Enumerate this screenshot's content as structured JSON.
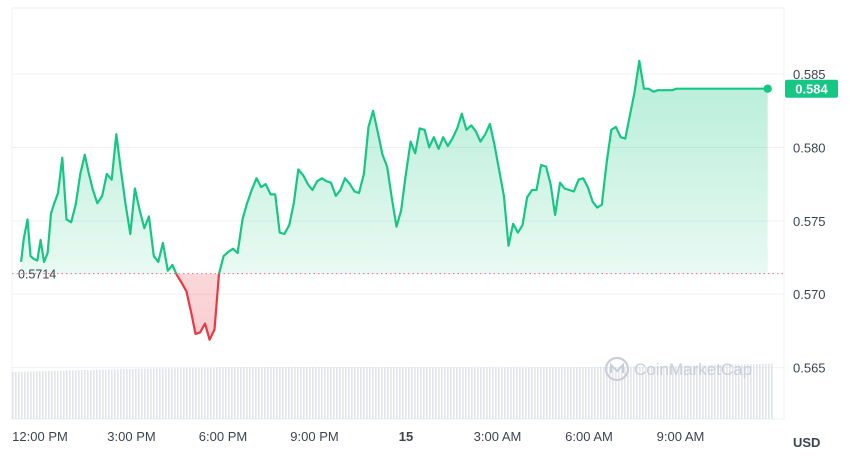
{
  "chart_data": {
    "type": "line",
    "currency": "USD",
    "watermark": "CoinMarketCap",
    "reference_price": 0.5714,
    "reference_label": "0.5714",
    "last_price": 0.584,
    "last_label": "0.584",
    "ylim": [
      0.5615,
      0.5895
    ],
    "y_ticks": [
      {
        "value": 0.585,
        "label": "0.585"
      },
      {
        "value": 0.58,
        "label": "0.580"
      },
      {
        "value": 0.575,
        "label": "0.575"
      },
      {
        "value": 0.57,
        "label": "0.570"
      },
      {
        "value": 0.565,
        "label": "0.565"
      }
    ],
    "x_ticks": [
      {
        "h": 0,
        "label": "12:00 PM"
      },
      {
        "h": 3,
        "label": "3:00 PM"
      },
      {
        "h": 6,
        "label": "6:00 PM"
      },
      {
        "h": 9,
        "label": "9:00 PM"
      },
      {
        "h": 12,
        "label": "15",
        "bold": true
      },
      {
        "h": 15,
        "label": "3:00 AM"
      },
      {
        "h": 18,
        "label": "6:00 AM"
      },
      {
        "h": 21,
        "label": "9:00 AM"
      }
    ],
    "series": [
      {
        "x_hours": [
          -0.62,
          -0.53,
          -0.41,
          -0.31,
          -0.2,
          -0.09,
          0.02,
          0.13,
          0.25,
          0.36,
          0.47,
          0.59,
          0.73,
          0.87,
          1.02,
          1.17,
          1.32,
          1.47,
          1.58,
          1.72,
          1.88,
          2.04,
          2.19,
          2.35,
          2.5,
          2.65,
          2.8,
          2.96,
          3.11,
          3.26,
          3.42,
          3.57,
          3.73,
          3.88,
          4.03,
          4.19,
          4.34,
          4.49,
          4.64,
          4.8,
          4.95,
          5.1,
          5.25,
          5.41,
          5.56,
          5.72,
          5.87,
          6.02,
          6.18,
          6.33,
          6.48,
          6.64,
          6.79,
          6.94,
          7.1,
          7.25,
          7.4,
          7.56,
          7.71,
          7.86,
          8.01,
          8.17,
          8.32,
          8.47,
          8.63,
          8.78,
          8.93,
          9.09,
          9.24,
          9.39,
          9.54,
          9.7,
          9.85,
          10.0,
          10.16,
          10.31,
          10.46,
          10.62,
          10.77,
          10.92,
          11.08,
          11.23,
          11.38,
          11.53,
          11.69,
          11.84,
          11.99,
          12.15,
          12.3,
          12.45,
          12.61,
          12.76,
          12.91,
          13.07,
          13.22,
          13.37,
          13.52,
          13.68,
          13.83,
          13.98,
          14.14,
          14.29,
          14.44,
          14.6,
          14.75,
          14.9,
          15.06,
          15.21,
          15.36,
          15.51,
          15.67,
          15.82,
          15.97,
          16.13,
          16.28,
          16.43,
          16.59,
          16.74,
          16.89,
          17.05,
          17.2,
          17.35,
          17.5,
          17.66,
          17.81,
          17.96,
          18.12,
          18.27,
          18.42,
          18.58,
          18.73,
          18.88,
          19.04,
          19.19,
          19.34,
          19.49,
          19.65,
          19.8,
          19.95,
          20.11,
          20.26,
          20.41,
          20.57,
          20.72,
          20.87,
          21.03,
          21.18,
          21.33,
          21.48,
          21.64,
          21.79,
          21.94,
          22.1,
          22.25,
          22.4,
          22.56,
          22.71,
          22.86,
          23.02,
          23.17,
          23.32,
          23.47,
          23.63,
          23.78,
          23.86
        ],
        "y": [
          0.5722,
          0.5738,
          0.5751,
          0.5726,
          0.5724,
          0.5723,
          0.5737,
          0.5722,
          0.5728,
          0.5755,
          0.5762,
          0.5769,
          0.5793,
          0.5751,
          0.5749,
          0.5761,
          0.5782,
          0.5795,
          0.5784,
          0.5772,
          0.5762,
          0.5767,
          0.5782,
          0.5778,
          0.5809,
          0.5785,
          0.5762,
          0.5741,
          0.5772,
          0.5758,
          0.5745,
          0.5753,
          0.5726,
          0.5722,
          0.5735,
          0.5716,
          0.572,
          0.5713,
          0.5708,
          0.5702,
          0.5688,
          0.5673,
          0.5674,
          0.568,
          0.5669,
          0.5676,
          0.5714,
          0.5726,
          0.5729,
          0.5731,
          0.5728,
          0.5751,
          0.5762,
          0.5771,
          0.5779,
          0.5773,
          0.5775,
          0.5768,
          0.5768,
          0.5742,
          0.5741,
          0.5747,
          0.5762,
          0.5785,
          0.5781,
          0.5775,
          0.5771,
          0.5777,
          0.5779,
          0.5777,
          0.5776,
          0.5767,
          0.5771,
          0.5779,
          0.5775,
          0.577,
          0.5769,
          0.5782,
          0.5814,
          0.5825,
          0.581,
          0.5795,
          0.5787,
          0.5766,
          0.5746,
          0.5757,
          0.5781,
          0.5804,
          0.5796,
          0.5813,
          0.5812,
          0.58,
          0.5807,
          0.5799,
          0.5807,
          0.5801,
          0.5806,
          0.5813,
          0.5823,
          0.5812,
          0.5815,
          0.5811,
          0.5804,
          0.5809,
          0.5816,
          0.5802,
          0.5784,
          0.5767,
          0.5733,
          0.5748,
          0.5742,
          0.5747,
          0.5766,
          0.5771,
          0.5771,
          0.5788,
          0.5787,
          0.5775,
          0.5754,
          0.5776,
          0.5772,
          0.5771,
          0.577,
          0.5778,
          0.5779,
          0.5773,
          0.5763,
          0.5759,
          0.5761,
          0.579,
          0.5812,
          0.5814,
          0.5807,
          0.5806,
          0.5822,
          0.5837,
          0.5859,
          0.584,
          0.584,
          0.5838,
          0.5839,
          0.5839,
          0.5839,
          0.5839,
          0.584,
          0.584,
          0.584,
          0.584,
          0.584,
          0.584,
          0.584,
          0.584,
          0.584,
          0.584,
          0.584,
          0.584,
          0.584,
          0.584,
          0.584,
          0.584,
          0.584,
          0.584,
          0.584,
          0.584,
          0.584
        ]
      }
    ],
    "colors": {
      "up": "#16c784",
      "down": "#ea3943",
      "grid": "#eef0f3",
      "axis_text": "#3d4451",
      "volume": "#d7dbe1",
      "reference_line": "#ea3943"
    },
    "grid": true,
    "legend": "none"
  }
}
